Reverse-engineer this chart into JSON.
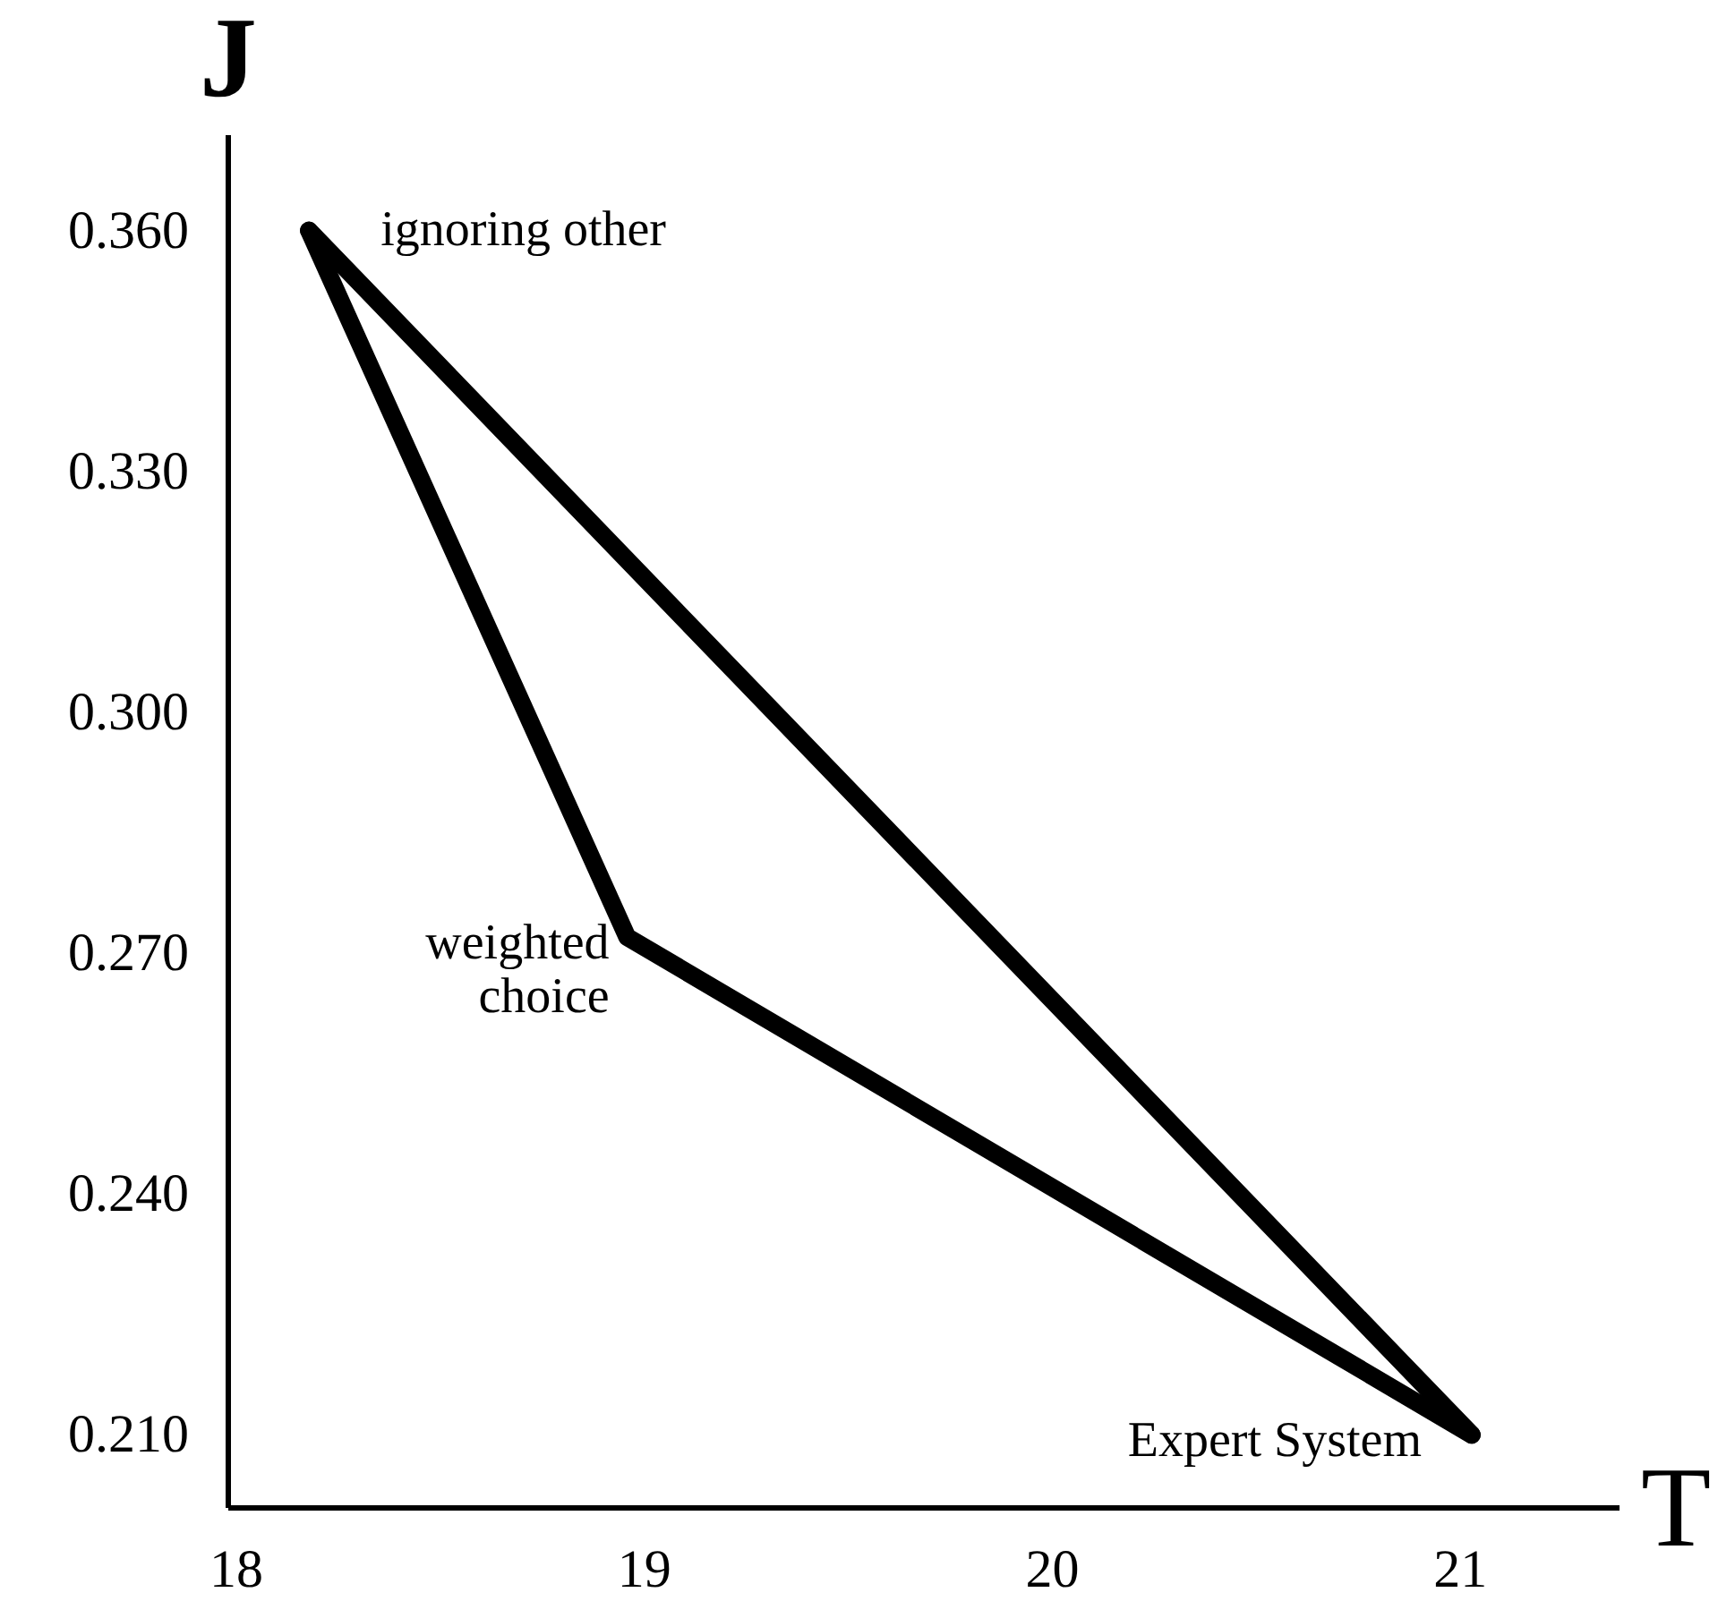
{
  "chart_data": {
    "type": "line",
    "xlabel": "T",
    "ylabel": "J",
    "series": [
      {
        "color": "#000000",
        "x": [
          18.18,
          18.96,
          21.03
        ],
        "values": [
          0.36,
          0.272,
          0.21
        ]
      },
      {
        "color": "#000000",
        "x": [
          18.18,
          21.03
        ],
        "values": [
          0.36,
          0.21
        ]
      }
    ],
    "xlim": [
      17.98,
      21.39
    ],
    "xticks": [
      18,
      19,
      20,
      21
    ],
    "ylim": [
      0.201,
      0.372
    ],
    "yticks": [
      {
        "value": 0.21,
        "label": "0.210"
      },
      {
        "value": 0.24,
        "label": "0.240"
      },
      {
        "value": 0.27,
        "label": "0.270"
      },
      {
        "value": 0.3,
        "label": "0.300"
      },
      {
        "value": 0.33,
        "label": "0.330"
      },
      {
        "value": 0.36,
        "label": "0.360"
      }
    ],
    "grid": false,
    "marker": "none",
    "line_style": "solid",
    "annotations": [
      {
        "text": "ignoring other",
        "x": 18.18,
        "y": 0.36
      },
      {
        "text": "weighted\nchoice",
        "x": 18.96,
        "y": 0.272
      },
      {
        "text": "Expert System",
        "x": 21.03,
        "y": 0.21
      }
    ]
  }
}
